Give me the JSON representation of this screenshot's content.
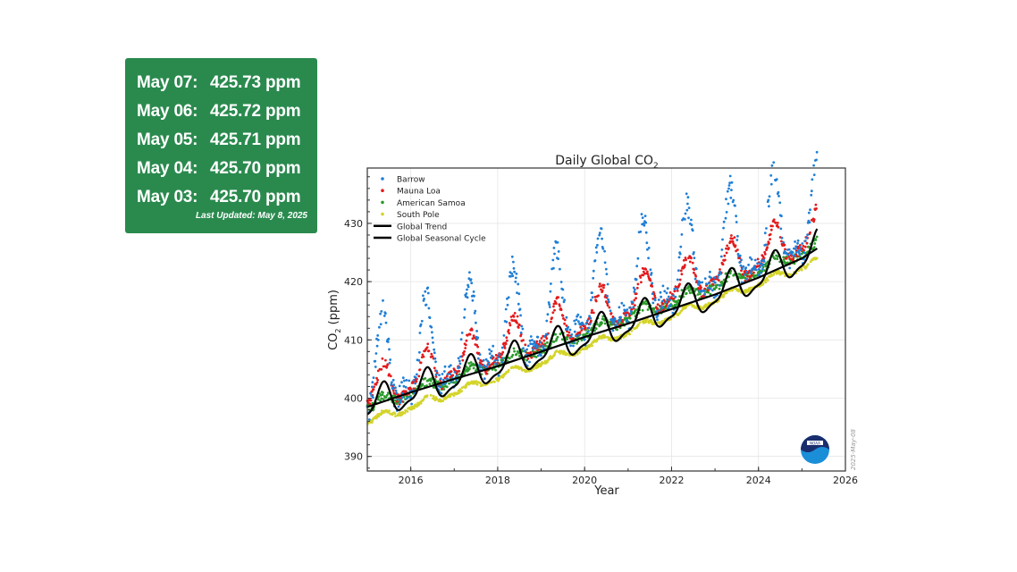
{
  "panel": {
    "readings": [
      {
        "date": "May 07:",
        "value": "425.73 ppm"
      },
      {
        "date": "May 06:",
        "value": "425.72 ppm"
      },
      {
        "date": "May 05:",
        "value": "425.71 ppm"
      },
      {
        "date": "May 04:",
        "value": "425.70 ppm"
      },
      {
        "date": "May 03:",
        "value": "425.70 ppm"
      }
    ],
    "last_updated": "Last Updated: May 8, 2025",
    "bg_color": "#2a8a4e"
  },
  "chart_data": {
    "type": "scatter",
    "title": "Daily Global CO",
    "title_subscript": "2",
    "xlabel": "Year",
    "ylabel": "CO",
    "ylabel_subscript": "2",
    "ylabel_suffix": " (ppm)",
    "xlim": [
      2015.0,
      2026.0
    ],
    "ylim": [
      387.5,
      439.5
    ],
    "xticks": [
      2016,
      2018,
      2020,
      2022,
      2024,
      2026
    ],
    "yticks": [
      390,
      400,
      410,
      420,
      430
    ],
    "grid": true,
    "legend_position": "top-left",
    "watermark": "2025-May-08",
    "logo": "NOAA",
    "series": [
      {
        "name": "Barrow",
        "kind": "points",
        "color": "#1f7fd6",
        "trend_start": 403.5,
        "growth": 2.45,
        "amplitude": 9.5,
        "noise": 2.0
      },
      {
        "name": "Mauna Loa",
        "kind": "points",
        "color": "#e31a1c",
        "trend_start": 401.0,
        "growth": 2.45,
        "amplitude": 3.3,
        "noise": 0.9
      },
      {
        "name": "American Samoa",
        "kind": "points",
        "color": "#2a9a2a",
        "trend_start": 398.5,
        "growth": 2.45,
        "amplitude": 0.8,
        "noise": 0.8
      },
      {
        "name": "South Pole",
        "kind": "points",
        "color": "#d4d42a",
        "trend_start": 396.0,
        "growth": 2.45,
        "amplitude": 0.6,
        "noise": 0.3
      },
      {
        "name": "Global Trend",
        "kind": "line",
        "color": "#000000",
        "x": [
          2015.0,
          2016.0,
          2017.0,
          2018.0,
          2019.0,
          2020.0,
          2021.0,
          2022.0,
          2023.0,
          2024.0,
          2025.0,
          2025.35
        ],
        "y": [
          398.5,
          401.0,
          403.3,
          405.5,
          408.0,
          410.5,
          412.8,
          415.3,
          417.8,
          420.7,
          424.0,
          425.7
        ]
      },
      {
        "name": "Global Seasonal Cycle",
        "kind": "line",
        "color": "#000000",
        "amplitude": 2.6,
        "x": [
          2015.0,
          2016.0,
          2017.0,
          2018.0,
          2019.0,
          2020.0,
          2021.0,
          2022.0,
          2023.0,
          2024.0,
          2025.0,
          2025.35
        ],
        "y": [
          398.5,
          401.0,
          403.3,
          405.5,
          408.0,
          410.5,
          412.8,
          415.3,
          417.8,
          420.7,
          424.0,
          425.7
        ]
      }
    ]
  }
}
